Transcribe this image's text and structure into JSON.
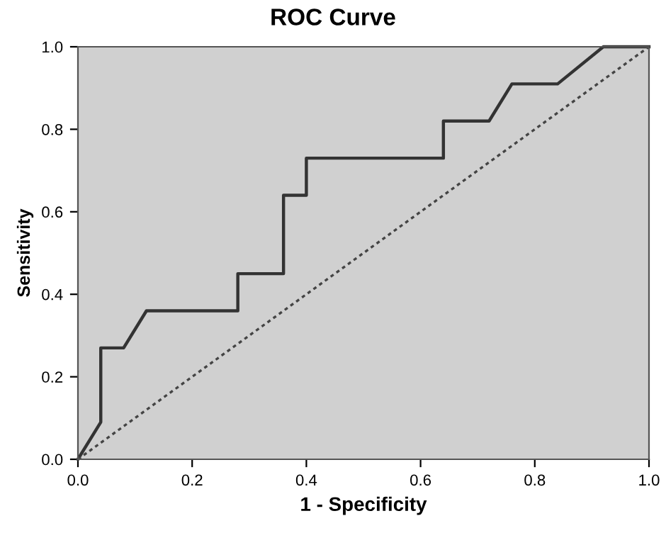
{
  "chart_data": {
    "type": "line",
    "title": "ROC Curve",
    "xlabel": "1 - Specificity",
    "ylabel": "Sensitivity",
    "xlim": [
      0.0,
      1.0
    ],
    "ylim": [
      0.0,
      1.0
    ],
    "xticks": [
      {
        "value": 0,
        "label": "0.0"
      },
      {
        "value": 0.2,
        "label": "0.2"
      },
      {
        "value": 0.4,
        "label": "0.4"
      },
      {
        "value": 0.6,
        "label": "0.6"
      },
      {
        "value": 0.8,
        "label": "0.8"
      },
      {
        "value": 1,
        "label": "1.0"
      }
    ],
    "yticks": [
      {
        "value": 0,
        "label": "0.0"
      },
      {
        "value": 0.2,
        "label": "0.2"
      },
      {
        "value": 0.4,
        "label": "0.4"
      },
      {
        "value": 0.6,
        "label": "0.6"
      },
      {
        "value": 0.8,
        "label": "0.8"
      },
      {
        "value": 1,
        "label": "1.0"
      }
    ],
    "grid": false,
    "legend": false,
    "marker": "none",
    "series": [
      {
        "color": "#333333",
        "line_style": "solid",
        "x": [
          0,
          0.04,
          0.04,
          0.08,
          0.12,
          0.28,
          0.28,
          0.36,
          0.36,
          0.4,
          0.4,
          0.64,
          0.64,
          0.72,
          0.76,
          0.84,
          0.92,
          1.0
        ],
        "values": [
          0,
          0.09,
          0.27,
          0.27,
          0.36,
          0.36,
          0.45,
          0.45,
          0.64,
          0.64,
          0.73,
          0.73,
          0.82,
          0.82,
          0.91,
          0.91,
          1.0,
          1.0
        ]
      },
      {
        "color": "#444444",
        "line_style": "dotted",
        "x": [
          0,
          1
        ],
        "values": [
          0,
          1
        ]
      }
    ]
  }
}
